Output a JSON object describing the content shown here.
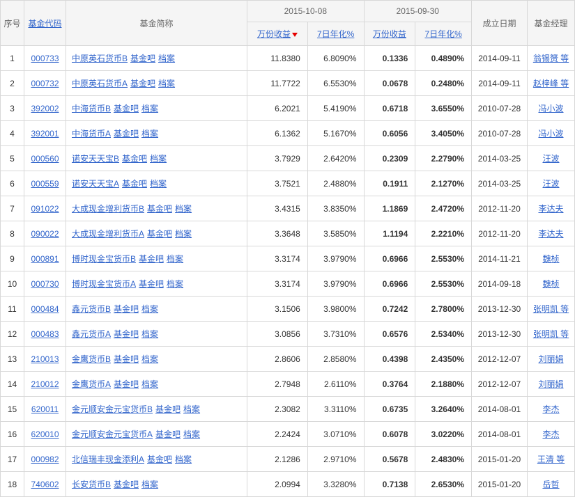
{
  "headers": {
    "seq": "序号",
    "code": "基金代码",
    "name": "基金简称",
    "date1": "2015-10-08",
    "date2": "2015-09-30",
    "wfsy": "万份收益",
    "qrnh": "7日年化%",
    "wfsy2": "万份收益",
    "qrnh2": "7日年化%",
    "estdate": "成立日期",
    "mgr": "基金经理"
  },
  "linkLabels": {
    "bar": "基金吧",
    "file": "档案"
  },
  "rows": [
    {
      "seq": "1",
      "code": "000733",
      "name": "中原英石货币B",
      "v1": "11.8380",
      "v2": "6.8090%",
      "v3": "0.1336",
      "v4": "0.4890%",
      "date": "2014-09-11",
      "mgr": "翁锡赟 等"
    },
    {
      "seq": "2",
      "code": "000732",
      "name": "中原英石货币A",
      "v1": "11.7722",
      "v2": "6.5530%",
      "v3": "0.0678",
      "v4": "0.2480%",
      "date": "2014-09-11",
      "mgr": "赵梓峰 等"
    },
    {
      "seq": "3",
      "code": "392002",
      "name": "中海货币B",
      "v1": "6.2021",
      "v2": "5.4190%",
      "v3": "0.6718",
      "v4": "3.6550%",
      "date": "2010-07-28",
      "mgr": "冯小波"
    },
    {
      "seq": "4",
      "code": "392001",
      "name": "中海货币A",
      "v1": "6.1362",
      "v2": "5.1670%",
      "v3": "0.6056",
      "v4": "3.4050%",
      "date": "2010-07-28",
      "mgr": "冯小波"
    },
    {
      "seq": "5",
      "code": "000560",
      "name": "诺安天天宝B",
      "v1": "3.7929",
      "v2": "2.6420%",
      "v3": "0.2309",
      "v4": "2.2790%",
      "date": "2014-03-25",
      "mgr": "汪波"
    },
    {
      "seq": "6",
      "code": "000559",
      "name": "诺安天天宝A",
      "v1": "3.7521",
      "v2": "2.4880%",
      "v3": "0.1911",
      "v4": "2.1270%",
      "date": "2014-03-25",
      "mgr": "汪波"
    },
    {
      "seq": "7",
      "code": "091022",
      "name": "大成现金增利货币B",
      "v1": "3.4315",
      "v2": "3.8350%",
      "v3": "1.1869",
      "v4": "2.4720%",
      "date": "2012-11-20",
      "mgr": "李达夫"
    },
    {
      "seq": "8",
      "code": "090022",
      "name": "大成现金增利货币A",
      "v1": "3.3648",
      "v2": "3.5850%",
      "v3": "1.1194",
      "v4": "2.2210%",
      "date": "2012-11-20",
      "mgr": "李达夫"
    },
    {
      "seq": "9",
      "code": "000891",
      "name": "博时现金宝货币B",
      "v1": "3.3174",
      "v2": "3.9790%",
      "v3": "0.6966",
      "v4": "2.5530%",
      "date": "2014-11-21",
      "mgr": "魏桢"
    },
    {
      "seq": "10",
      "code": "000730",
      "name": "博时现金宝货币A",
      "v1": "3.3174",
      "v2": "3.9790%",
      "v3": "0.6966",
      "v4": "2.5530%",
      "date": "2014-09-18",
      "mgr": "魏桢"
    },
    {
      "seq": "11",
      "code": "000484",
      "name": "鑫元货币B",
      "v1": "3.1506",
      "v2": "3.9800%",
      "v3": "0.7242",
      "v4": "2.7800%",
      "date": "2013-12-30",
      "mgr": "张明凯 等"
    },
    {
      "seq": "12",
      "code": "000483",
      "name": "鑫元货币A",
      "v1": "3.0856",
      "v2": "3.7310%",
      "v3": "0.6576",
      "v4": "2.5340%",
      "date": "2013-12-30",
      "mgr": "张明凯 等"
    },
    {
      "seq": "13",
      "code": "210013",
      "name": "金鹰货币B",
      "v1": "2.8606",
      "v2": "2.8580%",
      "v3": "0.4398",
      "v4": "2.4350%",
      "date": "2012-12-07",
      "mgr": "刘丽娟"
    },
    {
      "seq": "14",
      "code": "210012",
      "name": "金鹰货币A",
      "v1": "2.7948",
      "v2": "2.6110%",
      "v3": "0.3764",
      "v4": "2.1880%",
      "date": "2012-12-07",
      "mgr": "刘丽娟"
    },
    {
      "seq": "15",
      "code": "620011",
      "name": "金元顺安金元宝货币B",
      "v1": "2.3082",
      "v2": "3.3110%",
      "v3": "0.6735",
      "v4": "3.2640%",
      "date": "2014-08-01",
      "mgr": "李杰"
    },
    {
      "seq": "16",
      "code": "620010",
      "name": "金元顺安金元宝货币A",
      "v1": "2.2424",
      "v2": "3.0710%",
      "v3": "0.6078",
      "v4": "3.0220%",
      "date": "2014-08-01",
      "mgr": "李杰"
    },
    {
      "seq": "17",
      "code": "000982",
      "name": "北信瑞丰现金添利A",
      "v1": "2.1286",
      "v2": "2.9710%",
      "v3": "0.5678",
      "v4": "2.4830%",
      "date": "2015-01-20",
      "mgr": "王清 等"
    },
    {
      "seq": "18",
      "code": "740602",
      "name": "长安货币B",
      "v1": "2.0994",
      "v2": "3.3280%",
      "v3": "0.7138",
      "v4": "2.6530%",
      "date": "2015-01-20",
      "mgr": "岳哲"
    }
  ]
}
